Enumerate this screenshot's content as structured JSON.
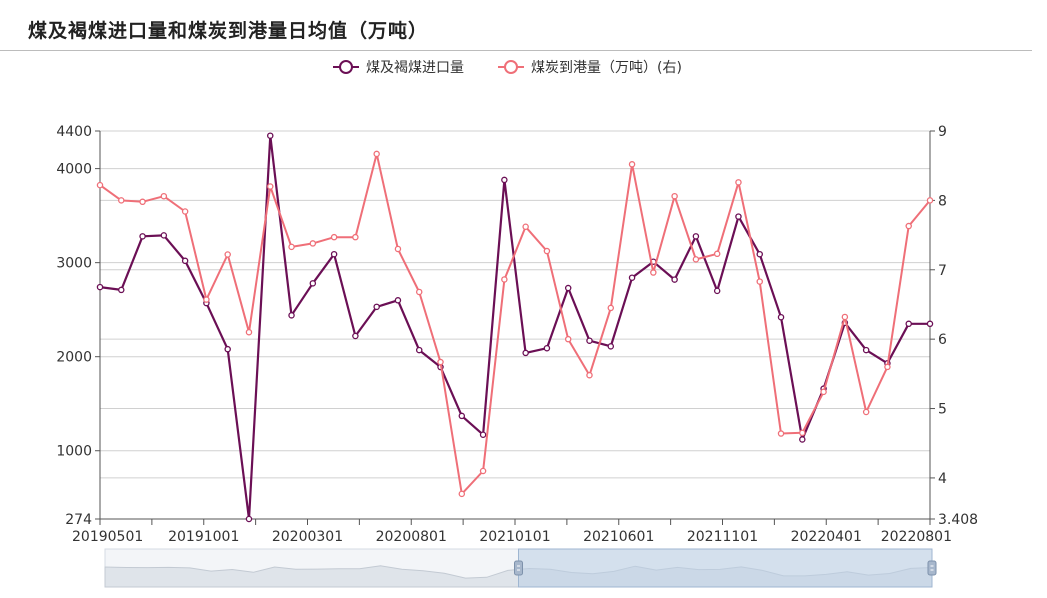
{
  "title": "煤及褐煤进口量和煤炭到港量日均值（万吨）",
  "colors": {
    "s1": "#6b0f55",
    "s2": "#ef6f78",
    "grid": "#d0d0d0",
    "axis": "#555555"
  },
  "chart_data": {
    "type": "line",
    "title": "煤及褐煤进口量和煤炭到港量日均值（万吨）",
    "legend_position": "top-center",
    "grid": true,
    "x": [
      "20190501",
      "20190601",
      "20190701",
      "20190801",
      "20190901",
      "20191001",
      "20191101",
      "20191201",
      "20200101",
      "20200201",
      "20200301",
      "20200401",
      "20200501",
      "20200601",
      "20200701",
      "20200801",
      "20200901",
      "20201001",
      "20201101",
      "20201201",
      "20210101",
      "20210201",
      "20210301",
      "20210401",
      "20210501",
      "20210601",
      "20210701",
      "20210801",
      "20210901",
      "20211001",
      "20211101",
      "20211201",
      "20220101",
      "20220201",
      "20220301",
      "20220401",
      "20220501",
      "20220601",
      "20220701",
      "20220801"
    ],
    "x_tick_labels": [
      "20190501",
      "20191001",
      "20200301",
      "20200801",
      "20210101",
      "20210601",
      "20211101",
      "20220401",
      "20220801"
    ],
    "y_left": {
      "min": 274,
      "max": 4400,
      "ticks": [
        "274",
        "1000",
        "2000",
        "3000",
        "4000",
        "4400"
      ]
    },
    "y_right": {
      "min": 3.408,
      "max": 9,
      "ticks": [
        "3.408",
        "4",
        "5",
        "6",
        "7",
        "8",
        "9"
      ]
    },
    "series": [
      {
        "name": "煤及褐煤进口量",
        "axis": "left",
        "values": [
          2740,
          2710,
          3280,
          3290,
          3020,
          2570,
          2080,
          274,
          4350,
          2440,
          2780,
          3090,
          2220,
          2530,
          2600,
          2070,
          1890,
          1370,
          1170,
          3880,
          2040,
          2090,
          2730,
          2170,
          2110,
          2840,
          3010,
          2820,
          3280,
          2700,
          3490,
          3090,
          2420,
          1120,
          1660,
          2360,
          2070,
          1930,
          2350,
          2350
        ]
      },
      {
        "name": "煤炭到港量（万吨）(右)",
        "axis": "right",
        "values": [
          8.22,
          8.0,
          7.98,
          8.06,
          7.84,
          6.57,
          7.22,
          6.1,
          8.2,
          7.33,
          7.38,
          7.47,
          7.47,
          8.67,
          7.3,
          6.68,
          5.67,
          3.77,
          4.1,
          6.86,
          7.62,
          7.27,
          6.0,
          5.48,
          6.45,
          8.52,
          6.96,
          8.06,
          7.15,
          7.23,
          8.26,
          6.83,
          4.64,
          4.65,
          5.24,
          6.32,
          4.95,
          5.6,
          7.63,
          8.0
        ]
      }
    ]
  }
}
